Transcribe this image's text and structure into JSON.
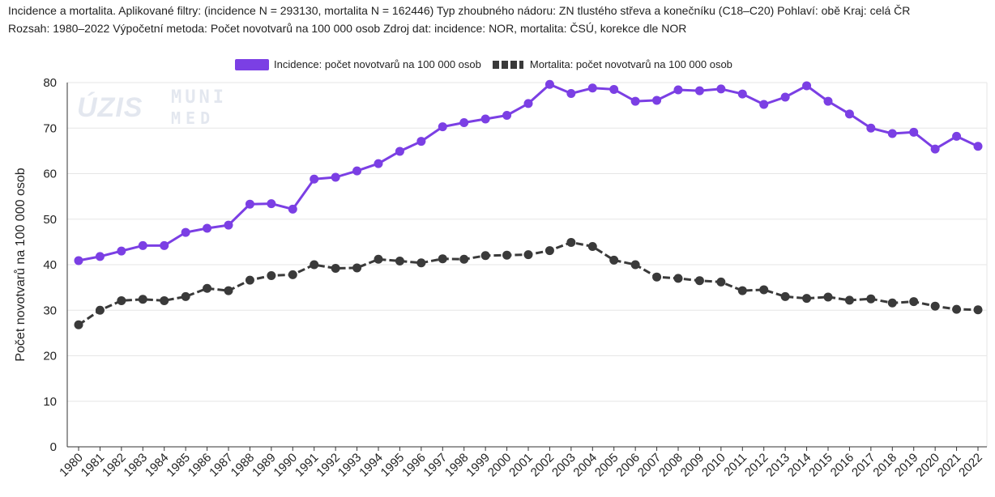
{
  "header": {
    "line1": "Incidence a mortalita. Aplikované filtry: (incidence N = 293130, mortalita N = 162446) Typ zhoubného nádoru: ZN tlustého střeva a konečníku (C18–C20) Pohlaví: obě Kraj: celá ČR",
    "line2": "Rozsah: 1980–2022 Výpočetní metoda: Počet novotvarů na 100 000 osob Zdroj dat: incidence: NOR, mortalita: ČSÚ, korekce dle NOR"
  },
  "watermark": {
    "uzis": "ÚZIS",
    "muni": "MUNI",
    "med": "MED"
  },
  "colors": {
    "incidence": "#7b3fe4",
    "mortality": "#3a3a3a",
    "grid": "#e6e6e6"
  },
  "chart_data": {
    "type": "line",
    "ylabel": "Počet novotvarů na 100 000 osob",
    "xlabel": "",
    "ylim": [
      0,
      80
    ],
    "yticks": [
      0,
      10,
      20,
      30,
      40,
      50,
      60,
      70,
      80
    ],
    "legend_position": "top-center",
    "grid": "horizontal",
    "categories": [
      "1980",
      "1981",
      "1982",
      "1983",
      "1984",
      "1985",
      "1986",
      "1987",
      "1988",
      "1989",
      "1990",
      "1991",
      "1992",
      "1993",
      "1994",
      "1995",
      "1996",
      "1997",
      "1998",
      "1999",
      "2000",
      "2001",
      "2002",
      "2003",
      "2004",
      "2005",
      "2006",
      "2007",
      "2008",
      "2009",
      "2010",
      "2011",
      "2012",
      "2013",
      "2014",
      "2015",
      "2016",
      "2017",
      "2018",
      "2019",
      "2020",
      "2021",
      "2022"
    ],
    "series": [
      {
        "name": "Incidence: počet novotvarů na 100 000 osob",
        "style": "solid",
        "values": [
          40.9,
          41.8,
          43.0,
          44.2,
          44.2,
          47.1,
          48.0,
          48.7,
          53.3,
          53.4,
          52.2,
          58.8,
          59.2,
          60.6,
          62.2,
          64.9,
          67.1,
          70.3,
          71.2,
          72.0,
          72.8,
          75.4,
          79.6,
          77.6,
          78.8,
          78.5,
          75.9,
          76.1,
          78.4,
          78.2,
          78.6,
          77.5,
          75.2,
          76.8,
          79.3,
          75.9,
          73.1,
          70.0,
          68.8,
          69.1,
          65.4,
          68.2,
          66.0
        ]
      },
      {
        "name": "Mortalita: počet novotvarů na 100 000 osob",
        "style": "dashed",
        "values": [
          26.8,
          30.0,
          32.1,
          32.4,
          32.1,
          33.0,
          34.8,
          34.3,
          36.6,
          37.6,
          37.8,
          40.0,
          39.2,
          39.3,
          41.2,
          40.8,
          40.4,
          41.3,
          41.2,
          42.0,
          42.1,
          42.2,
          43.1,
          44.9,
          44.0,
          41.0,
          40.0,
          37.3,
          37.0,
          36.5,
          36.2,
          34.3,
          34.5,
          33.0,
          32.6,
          32.9,
          32.2,
          32.5,
          31.6,
          31.9,
          30.9,
          30.2,
          30.1
        ]
      }
    ]
  }
}
